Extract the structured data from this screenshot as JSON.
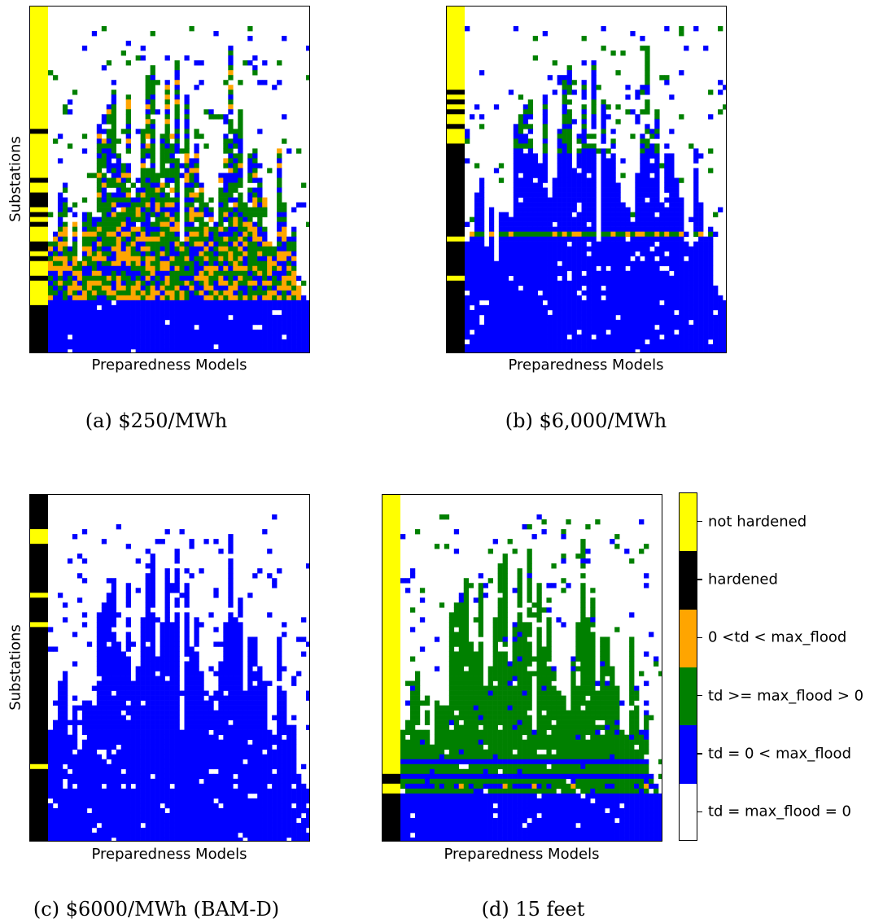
{
  "palette": {
    "yellow": "#ffff00",
    "black": "#000000",
    "orange": "#ffa500",
    "green": "#008000",
    "blue": "#0000ff",
    "white": "#ffffff"
  },
  "chart_data": [
    {
      "type": "heatmap",
      "panel": "a",
      "caption": "(a) $250/MWh",
      "xlabel": "Preparedness Models",
      "ylabel": "Substations",
      "categories_from_legend": true,
      "first_column": "hardening decision (not hardened / hardened)",
      "dominant_values": [
        "not hardened",
        "hardened",
        "0 <td < max_flood",
        "td >= max_flood > 0",
        "td = 0 < max_flood",
        "td = max_flood = 0"
      ]
    },
    {
      "type": "heatmap",
      "panel": "b",
      "caption": "(b) $6,000/MWh",
      "xlabel": "Preparedness Models",
      "ylabel": "",
      "first_column": "hardening decision (not hardened / hardened)",
      "dominant_values": [
        "not hardened",
        "hardened",
        "0 <td < max_flood",
        "td >= max_flood > 0",
        "td = 0 < max_flood",
        "td = max_flood = 0"
      ]
    },
    {
      "type": "heatmap",
      "panel": "c",
      "caption": "(c) $6000/MWh (BAM-D)",
      "xlabel": "Preparedness Models",
      "ylabel": "Substations",
      "first_column": "hardening decision (not hardened / hardened)",
      "dominant_values": [
        "not hardened",
        "hardened",
        "td = 0 < max_flood",
        "td = max_flood = 0"
      ]
    },
    {
      "type": "heatmap",
      "panel": "d",
      "caption": "(d) 15 feet",
      "xlabel": "Preparedness Models",
      "ylabel": "",
      "first_column": "hardening decision (not hardened / hardened)",
      "dominant_values": [
        "not hardened",
        "hardened",
        "0 <td < max_flood",
        "td >= max_flood > 0",
        "td = 0 < max_flood",
        "td = max_flood = 0"
      ]
    }
  ],
  "colorbar": {
    "labels": [
      "not hardened",
      "hardened",
      "0 <td < max_flood",
      "td >= max_flood > 0",
      "td = 0 < max_flood",
      "td = max_flood = 0"
    ],
    "colors": [
      "#ffff00",
      "#000000",
      "#ffa500",
      "#008000",
      "#0000ff",
      "#ffffff"
    ]
  }
}
